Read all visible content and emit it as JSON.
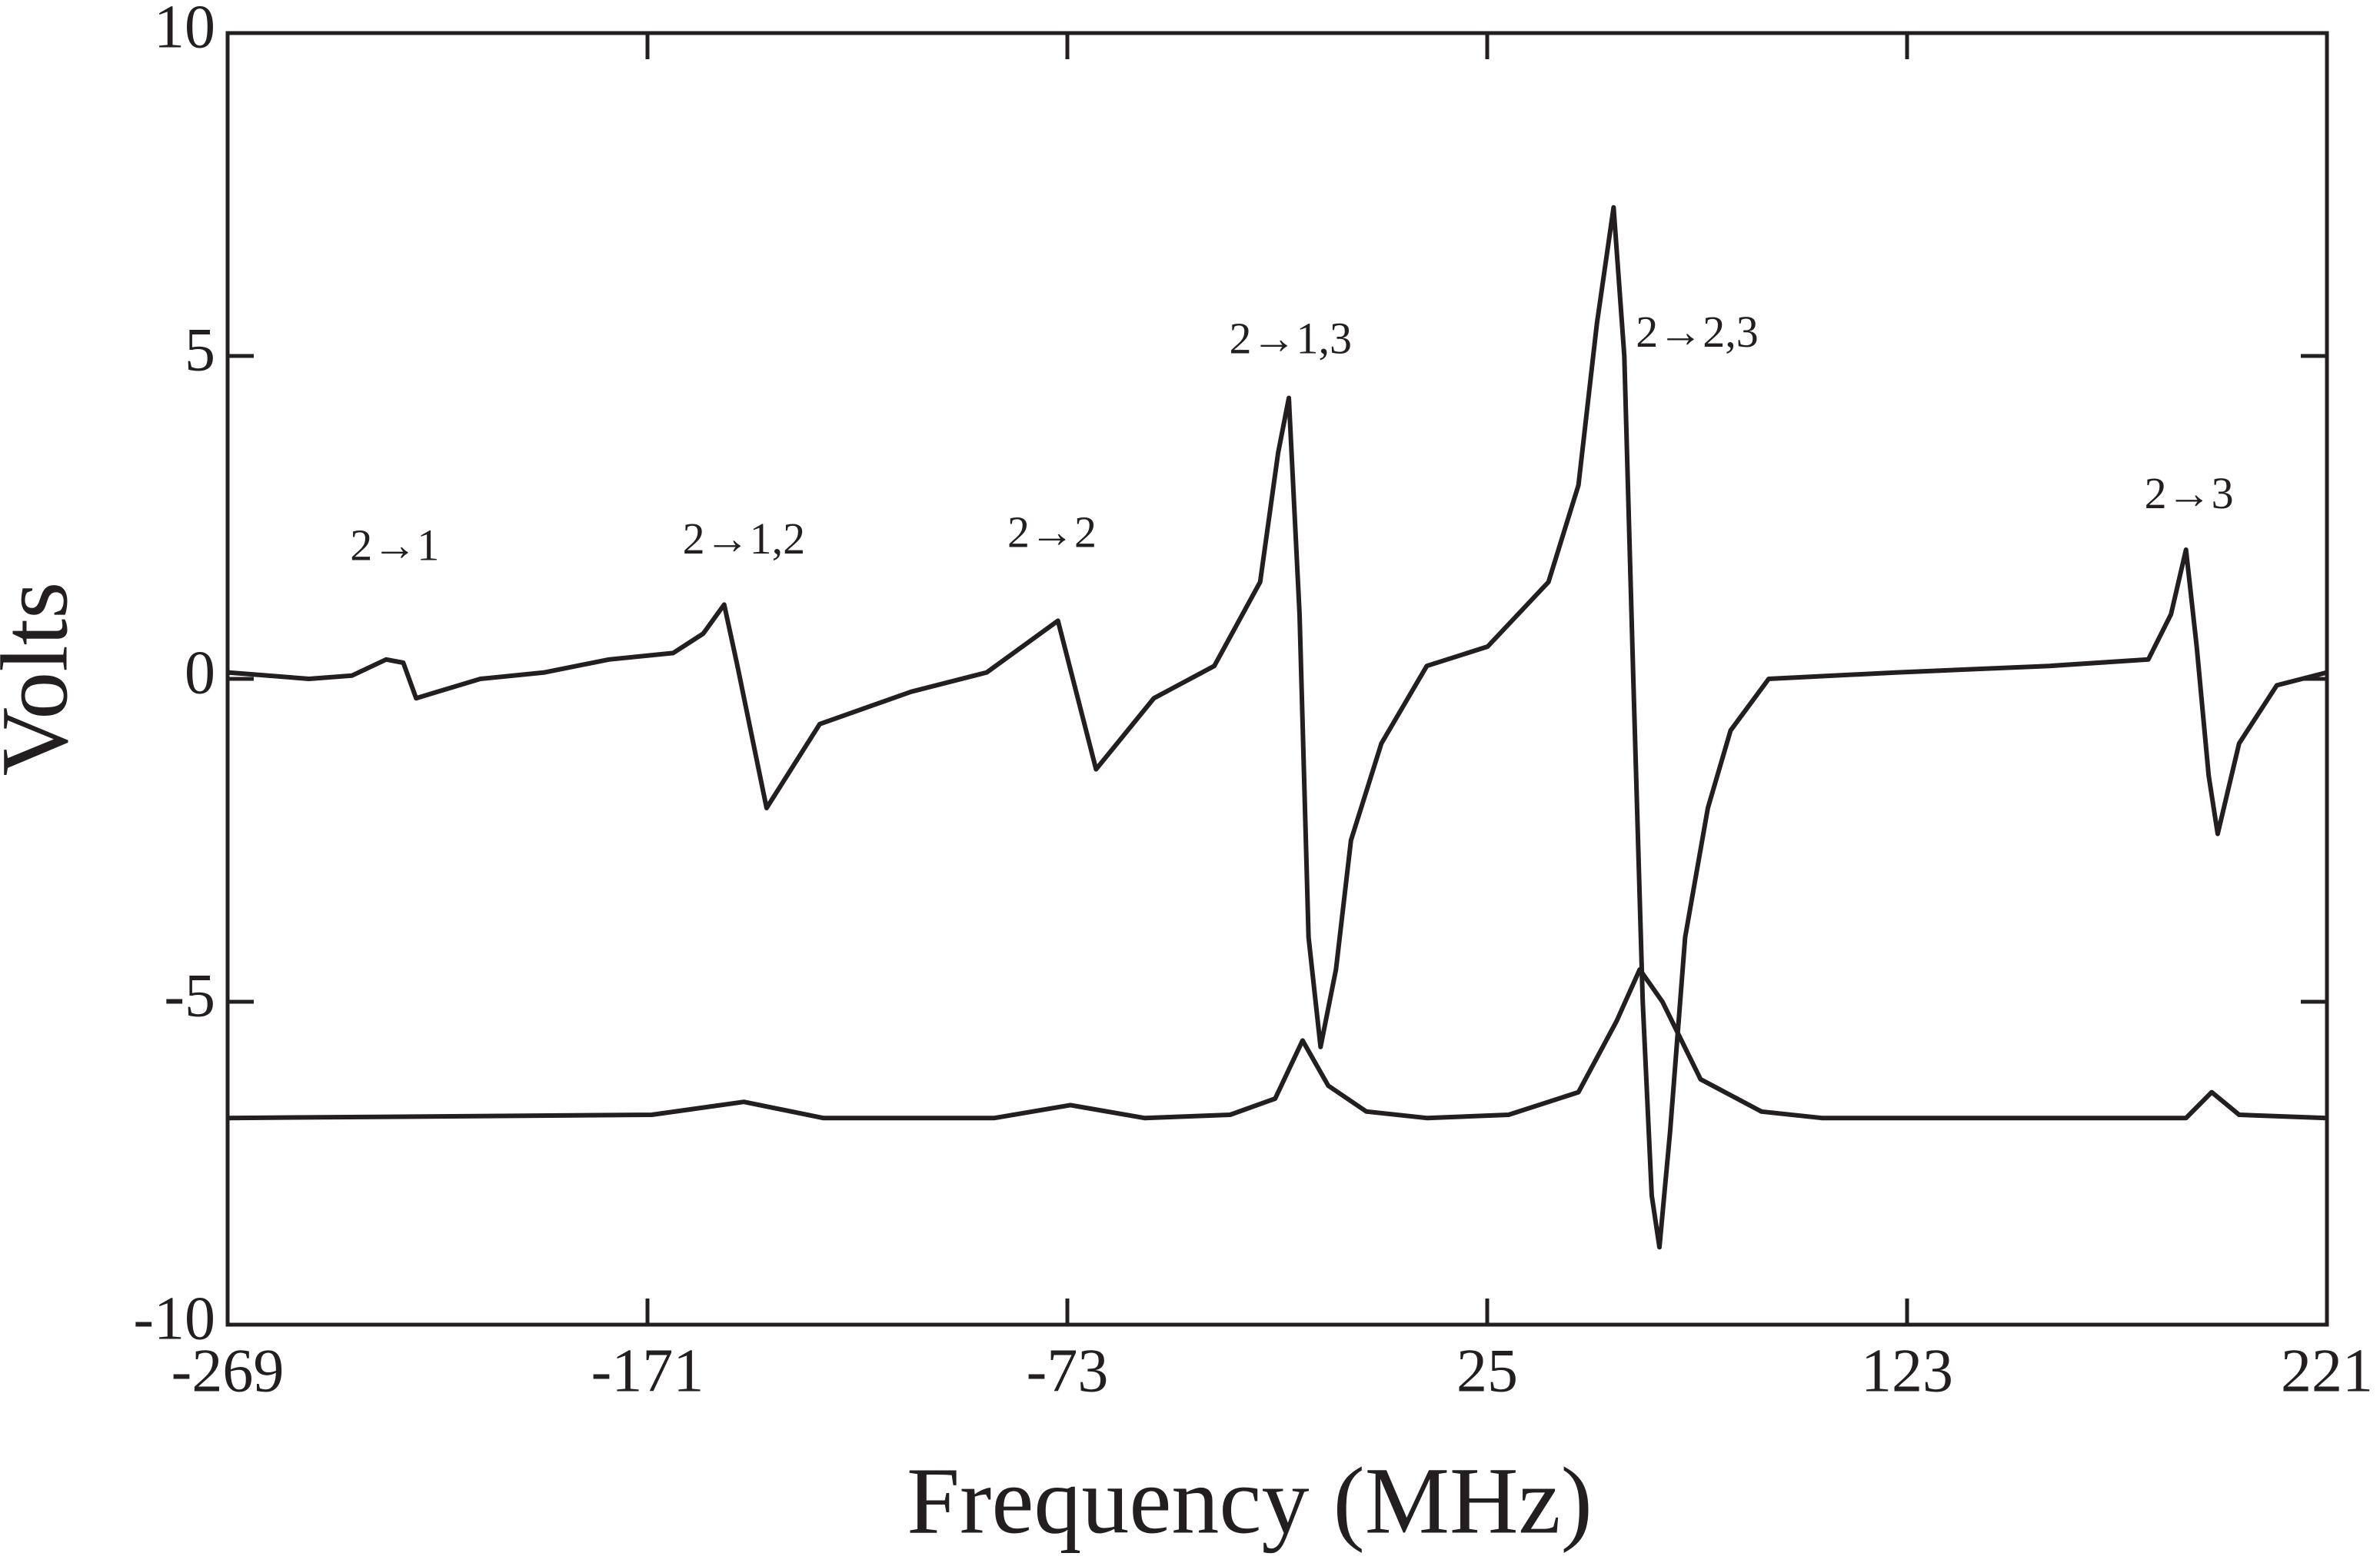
{
  "chart_data": {
    "type": "line",
    "xlabel": "Frequency (MHz)",
    "ylabel": "Volts",
    "xlim": [
      -269,
      221
    ],
    "ylim": [
      -10,
      10
    ],
    "xticks": [
      -269,
      -171,
      -73,
      25,
      123,
      221
    ],
    "yticks": [
      -10,
      -5,
      0,
      5,
      10
    ],
    "series": [
      {
        "color": "#231f20",
        "x": [
          -269,
          -250,
          -240,
          -232,
          -228,
          -225,
          -220,
          -210,
          -195,
          -180,
          -165,
          -158,
          -153.1,
          -150,
          -143.2,
          -130.8,
          -109.5,
          -91.8,
          -75.2,
          -66.3,
          -52.8,
          -38.7,
          -28.0,
          -23.8,
          -21.3,
          -18.8,
          -16.7,
          -13.9,
          -10.3,
          -6.8,
          0.3,
          10.9,
          25.1,
          39.3,
          46.3,
          50.6,
          54.5,
          57.0,
          59.1,
          61.3,
          63.4,
          65.2,
          67.7,
          71.2,
          76.5,
          81.8,
          90.7,
          120.8,
          156.2,
          179.3,
          184.6,
          188.1,
          190.6,
          193.4,
          195.5,
          200.5,
          209.3,
          221
        ],
        "values": [
          0.1,
          0.0,
          0.05,
          0.3,
          0.25,
          -0.3,
          -0.2,
          0.0,
          0.1,
          0.3,
          0.4,
          0.7,
          1.15,
          0.2,
          -2.0,
          -0.7,
          -0.2,
          0.1,
          0.9,
          -1.4,
          -0.3,
          0.2,
          1.5,
          3.5,
          4.35,
          1.0,
          -4.0,
          -5.7,
          -4.5,
          -2.5,
          -1.0,
          0.2,
          0.5,
          1.5,
          3.0,
          5.5,
          7.3,
          5.0,
          0.0,
          -5.0,
          -8.0,
          -8.8,
          -7.0,
          -4.0,
          -2.0,
          -0.8,
          0.0,
          0.1,
          0.2,
          0.3,
          1.0,
          2.0,
          0.5,
          -1.5,
          -2.4,
          -1.0,
          -0.1,
          0.1
        ]
      },
      {
        "color": "#231f20",
        "x": [
          -269,
          -170,
          -148.5,
          -130,
          -90,
          -72.3,
          -55,
          -35,
          -24.5,
          -18.1,
          -12.1,
          -3.2,
          10.9,
          30,
          46.3,
          55.2,
          60.6,
          65.9,
          74.8,
          89.0,
          103.1,
          160,
          188.1,
          194.1,
          200.5,
          221
        ],
        "values": [
          -6.8,
          -6.75,
          -6.55,
          -6.8,
          -6.8,
          -6.6,
          -6.8,
          -6.75,
          -6.5,
          -5.6,
          -6.3,
          -6.7,
          -6.8,
          -6.75,
          -6.4,
          -5.3,
          -4.5,
          -5.0,
          -6.2,
          -6.7,
          -6.8,
          -6.8,
          -6.8,
          -6.4,
          -6.75,
          -6.8
        ]
      }
    ],
    "annotations": [
      {
        "text": "2→1",
        "x": -230,
        "y": 2.0
      },
      {
        "text": "2→1,2",
        "x": -148.5,
        "y": 2.1
      },
      {
        "text": "2→2",
        "x": -76.6,
        "y": 2.2
      },
      {
        "text": "2→1,3",
        "x": -20.9,
        "y": 5.2
      },
      {
        "text": "2→2,3",
        "x": 74.0,
        "y": 5.3
      },
      {
        "text": "2→3",
        "x": 188.8,
        "y": 2.8
      }
    ]
  }
}
